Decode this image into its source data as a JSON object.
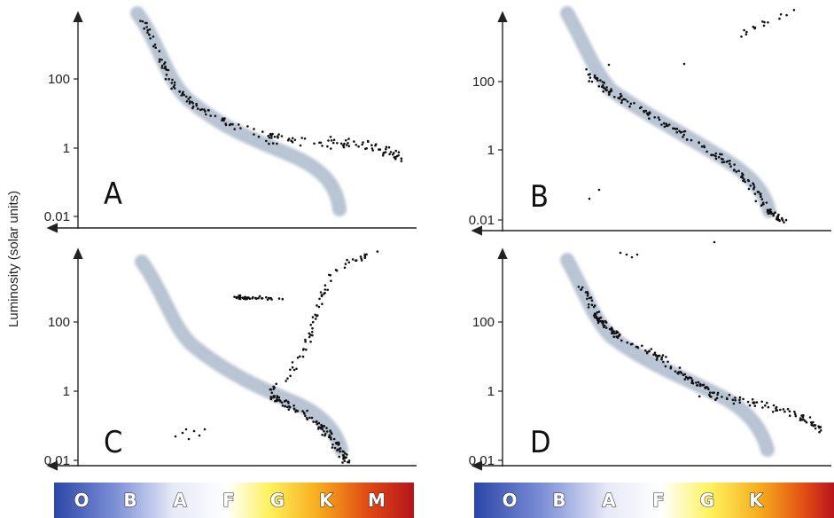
{
  "chart_data": [
    {
      "type": "scatter",
      "panel_label": "A",
      "xlabel": "",
      "ylabel": "Luminosity (solar units)",
      "y_scale": "log",
      "y_ticks": [
        "100",
        "1",
        "0.01"
      ],
      "spectral_classes": [
        "O",
        "B",
        "A",
        "F",
        "G",
        "K",
        "M"
      ],
      "main_sequence_band": true,
      "stars": [
        {
          "spectral": "O-B",
          "luminosity": "~10^3-10^4",
          "count": 25
        },
        {
          "spectral": "B-F",
          "luminosity": "~10-1000",
          "count": 55
        },
        {
          "spectral": "F-G",
          "luminosity": "~1-10",
          "count": 40
        },
        {
          "spectral": "G-M",
          "luminosity": "~0.5-3 (off sequence, horizontal)",
          "count": 75
        }
      ]
    },
    {
      "type": "scatter",
      "panel_label": "B",
      "xlabel": "",
      "ylabel": "",
      "y_scale": "log",
      "y_ticks": [
        "100",
        "1",
        "0.01"
      ],
      "spectral_classes": [
        "O",
        "B",
        "A",
        "F",
        "G",
        "K"
      ],
      "main_sequence_band": true,
      "stars": [
        {
          "spectral": "B-K",
          "luminosity": "along main sequence ~0.01-300",
          "count": 170
        },
        {
          "spectral": "late K-M",
          "luminosity": "~5000-10000 (giants)",
          "count": 15
        },
        {
          "spectral": "A",
          "luminosity": "~0.03 (white dwarfs)",
          "count": 2
        },
        {
          "spectral": "B",
          "luminosity": "~1000",
          "count": 1
        }
      ]
    },
    {
      "type": "scatter",
      "panel_label": "C",
      "xlabel": "",
      "ylabel": "",
      "y_scale": "log",
      "y_ticks": [
        "100",
        "1",
        "0.01"
      ],
      "spectral_classes": [
        "O",
        "B",
        "A",
        "F",
        "G",
        "K",
        "M"
      ],
      "main_sequence_band": true,
      "stars": [
        {
          "spectral": "G-K",
          "luminosity": "~0.01-3 (lower main sequence)",
          "count": 110
        },
        {
          "spectral": "G-M",
          "luminosity": "~3-10000 (giant branch)",
          "count": 70
        },
        {
          "spectral": "A-F",
          "luminosity": "~300 (horizontal branch)",
          "count": 40
        },
        {
          "spectral": "A",
          "luminosity": "~0.05 (white dwarfs)",
          "count": 7
        }
      ]
    },
    {
      "type": "scatter",
      "panel_label": "D",
      "xlabel": "",
      "ylabel": "",
      "y_scale": "log",
      "y_ticks": [
        "100",
        "1",
        "0.01"
      ],
      "spectral_classes": [
        "O",
        "B",
        "A",
        "F",
        "G",
        "K"
      ],
      "main_sequence_band": true,
      "stars": [
        {
          "spectral": "B-F",
          "luminosity": "~10-1000 (upper main sequence)",
          "count": 130
        },
        {
          "spectral": "F-K",
          "luminosity": "~0.3-3 (off sequence, horizontal)",
          "count": 75
        },
        {
          "spectral": "B",
          "luminosity": "~5000",
          "count": 4
        }
      ]
    }
  ]
}
